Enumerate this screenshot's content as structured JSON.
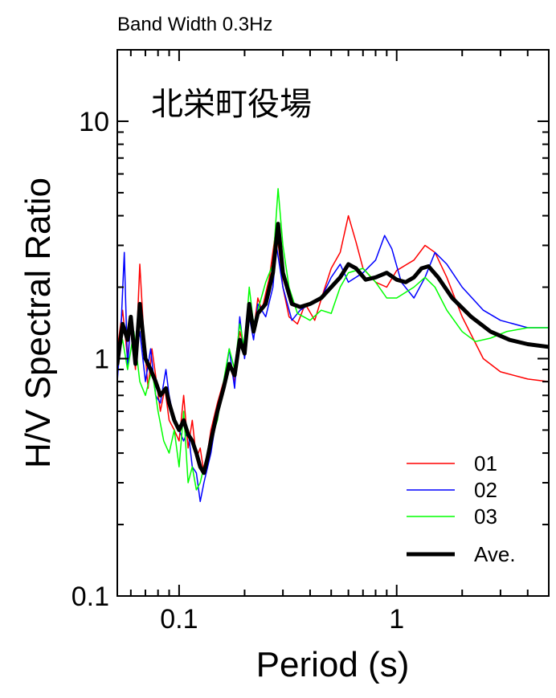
{
  "chart_data": {
    "type": "line",
    "subtitle": "Band Width 0.3Hz",
    "title": "北栄町役場",
    "xlabel": "Period (s)",
    "ylabel": "H/V Spectral Ratio",
    "x_scale": "log",
    "y_scale": "log",
    "xlim": [
      0.052,
      5
    ],
    "ylim": [
      0.1,
      20
    ],
    "x_ticks": [
      {
        "value": 0.1,
        "label": "0.1"
      },
      {
        "value": 1,
        "label": "1"
      }
    ],
    "y_ticks": [
      {
        "value": 0.1,
        "label": "0.1"
      },
      {
        "value": 1,
        "label": "1"
      },
      {
        "value": 10,
        "label": "10"
      }
    ],
    "grid": false,
    "legend_position": "bottom-right",
    "series": [
      {
        "name": "01",
        "color": "#ff0000",
        "width": 1.5,
        "points": [
          [
            0.052,
            1.1
          ],
          [
            0.055,
            1.6
          ],
          [
            0.058,
            1.0
          ],
          [
            0.06,
            1.4
          ],
          [
            0.063,
            0.9
          ],
          [
            0.066,
            2.5
          ],
          [
            0.069,
            1.2
          ],
          [
            0.072,
            0.75
          ],
          [
            0.075,
            1.1
          ],
          [
            0.078,
            0.85
          ],
          [
            0.082,
            0.6
          ],
          [
            0.086,
            0.75
          ],
          [
            0.09,
            0.55
          ],
          [
            0.095,
            0.5
          ],
          [
            0.1,
            0.45
          ],
          [
            0.105,
            0.7
          ],
          [
            0.11,
            0.42
          ],
          [
            0.115,
            0.55
          ],
          [
            0.12,
            0.38
          ],
          [
            0.125,
            0.42
          ],
          [
            0.13,
            0.33
          ],
          [
            0.135,
            0.4
          ],
          [
            0.14,
            0.5
          ],
          [
            0.15,
            0.65
          ],
          [
            0.16,
            0.8
          ],
          [
            0.17,
            0.95
          ],
          [
            0.18,
            0.8
          ],
          [
            0.19,
            1.3
          ],
          [
            0.2,
            1.1
          ],
          [
            0.21,
            1.6
          ],
          [
            0.22,
            1.3
          ],
          [
            0.23,
            1.8
          ],
          [
            0.24,
            1.6
          ],
          [
            0.26,
            2.2
          ],
          [
            0.28,
            3.6
          ],
          [
            0.3,
            2.0
          ],
          [
            0.32,
            1.5
          ],
          [
            0.35,
            1.4
          ],
          [
            0.38,
            1.7
          ],
          [
            0.42,
            1.45
          ],
          [
            0.46,
            1.9
          ],
          [
            0.5,
            2.4
          ],
          [
            0.55,
            2.8
          ],
          [
            0.6,
            4.0
          ],
          [
            0.65,
            3.1
          ],
          [
            0.7,
            2.4
          ],
          [
            0.8,
            2.1
          ],
          [
            0.9,
            2.0
          ],
          [
            1.0,
            2.35
          ],
          [
            1.2,
            2.6
          ],
          [
            1.35,
            3.0
          ],
          [
            1.5,
            2.8
          ],
          [
            1.7,
            2.2
          ],
          [
            2.0,
            1.5
          ],
          [
            2.5,
            1.0
          ],
          [
            3.0,
            0.88
          ],
          [
            4.0,
            0.82
          ],
          [
            5.0,
            0.8
          ]
        ]
      },
      {
        "name": "02",
        "color": "#0000ff",
        "width": 1.5,
        "points": [
          [
            0.052,
            0.8
          ],
          [
            0.054,
            1.3
          ],
          [
            0.056,
            2.8
          ],
          [
            0.058,
            0.9
          ],
          [
            0.06,
            1.5
          ],
          [
            0.063,
            1.0
          ],
          [
            0.066,
            1.3
          ],
          [
            0.07,
            0.8
          ],
          [
            0.074,
            1.1
          ],
          [
            0.078,
            0.7
          ],
          [
            0.082,
            0.65
          ],
          [
            0.087,
            0.9
          ],
          [
            0.09,
            0.7
          ],
          [
            0.095,
            0.55
          ],
          [
            0.1,
            0.5
          ],
          [
            0.105,
            0.45
          ],
          [
            0.11,
            0.5
          ],
          [
            0.115,
            0.35
          ],
          [
            0.12,
            0.33
          ],
          [
            0.125,
            0.25
          ],
          [
            0.13,
            0.3
          ],
          [
            0.14,
            0.4
          ],
          [
            0.15,
            0.6
          ],
          [
            0.16,
            0.75
          ],
          [
            0.17,
            1.1
          ],
          [
            0.18,
            0.75
          ],
          [
            0.19,
            1.5
          ],
          [
            0.2,
            1.0
          ],
          [
            0.21,
            1.5
          ],
          [
            0.22,
            1.2
          ],
          [
            0.23,
            1.7
          ],
          [
            0.25,
            1.5
          ],
          [
            0.27,
            2.0
          ],
          [
            0.28,
            3.0
          ],
          [
            0.3,
            2.0
          ],
          [
            0.33,
            1.45
          ],
          [
            0.36,
            1.6
          ],
          [
            0.4,
            1.7
          ],
          [
            0.45,
            1.8
          ],
          [
            0.5,
            2.2
          ],
          [
            0.55,
            2.5
          ],
          [
            0.6,
            2.1
          ],
          [
            0.7,
            2.3
          ],
          [
            0.8,
            2.6
          ],
          [
            0.88,
            3.3
          ],
          [
            0.95,
            2.9
          ],
          [
            1.05,
            2.1
          ],
          [
            1.2,
            1.8
          ],
          [
            1.35,
            2.2
          ],
          [
            1.5,
            2.8
          ],
          [
            1.7,
            2.5
          ],
          [
            2.0,
            2.0
          ],
          [
            2.5,
            1.6
          ],
          [
            3.0,
            1.45
          ],
          [
            4.0,
            1.35
          ],
          [
            5.0,
            1.35
          ]
        ]
      },
      {
        "name": "03",
        "color": "#00ff00",
        "width": 1.5,
        "points": [
          [
            0.052,
            1.0
          ],
          [
            0.055,
            1.2
          ],
          [
            0.058,
            0.9
          ],
          [
            0.062,
            1.3
          ],
          [
            0.066,
            0.8
          ],
          [
            0.07,
            0.7
          ],
          [
            0.075,
            0.9
          ],
          [
            0.08,
            0.6
          ],
          [
            0.085,
            0.45
          ],
          [
            0.09,
            0.4
          ],
          [
            0.095,
            0.5
          ],
          [
            0.1,
            0.35
          ],
          [
            0.105,
            0.6
          ],
          [
            0.11,
            0.3
          ],
          [
            0.115,
            0.35
          ],
          [
            0.12,
            0.28
          ],
          [
            0.125,
            0.3
          ],
          [
            0.13,
            0.35
          ],
          [
            0.14,
            0.45
          ],
          [
            0.15,
            0.55
          ],
          [
            0.16,
            0.8
          ],
          [
            0.17,
            1.1
          ],
          [
            0.18,
            0.9
          ],
          [
            0.19,
            1.4
          ],
          [
            0.2,
            1.1
          ],
          [
            0.21,
            2.0
          ],
          [
            0.22,
            1.4
          ],
          [
            0.23,
            1.6
          ],
          [
            0.25,
            2.1
          ],
          [
            0.27,
            2.5
          ],
          [
            0.285,
            5.2
          ],
          [
            0.3,
            3.0
          ],
          [
            0.32,
            2.0
          ],
          [
            0.35,
            1.55
          ],
          [
            0.4,
            1.45
          ],
          [
            0.45,
            1.6
          ],
          [
            0.5,
            1.55
          ],
          [
            0.55,
            2.0
          ],
          [
            0.6,
            2.3
          ],
          [
            0.7,
            2.4
          ],
          [
            0.8,
            2.1
          ],
          [
            0.9,
            1.8
          ],
          [
            1.0,
            1.8
          ],
          [
            1.2,
            2.0
          ],
          [
            1.35,
            2.2
          ],
          [
            1.5,
            2.0
          ],
          [
            1.7,
            1.6
          ],
          [
            2.0,
            1.3
          ],
          [
            2.3,
            1.18
          ],
          [
            2.7,
            1.22
          ],
          [
            3.2,
            1.3
          ],
          [
            4.0,
            1.35
          ],
          [
            5.0,
            1.35
          ]
        ]
      },
      {
        "name": "Ave.",
        "color": "#000000",
        "width": 5,
        "points": [
          [
            0.052,
            0.95
          ],
          [
            0.055,
            1.4
          ],
          [
            0.058,
            1.2
          ],
          [
            0.06,
            1.5
          ],
          [
            0.063,
            0.95
          ],
          [
            0.066,
            1.7
          ],
          [
            0.07,
            1.0
          ],
          [
            0.074,
            0.9
          ],
          [
            0.078,
            0.8
          ],
          [
            0.082,
            0.7
          ],
          [
            0.087,
            0.75
          ],
          [
            0.09,
            0.65
          ],
          [
            0.095,
            0.55
          ],
          [
            0.1,
            0.5
          ],
          [
            0.105,
            0.55
          ],
          [
            0.11,
            0.48
          ],
          [
            0.115,
            0.45
          ],
          [
            0.12,
            0.4
          ],
          [
            0.125,
            0.35
          ],
          [
            0.13,
            0.33
          ],
          [
            0.135,
            0.38
          ],
          [
            0.14,
            0.45
          ],
          [
            0.15,
            0.6
          ],
          [
            0.16,
            0.75
          ],
          [
            0.17,
            0.95
          ],
          [
            0.18,
            0.85
          ],
          [
            0.19,
            1.2
          ],
          [
            0.2,
            1.05
          ],
          [
            0.21,
            1.7
          ],
          [
            0.22,
            1.3
          ],
          [
            0.23,
            1.55
          ],
          [
            0.25,
            1.7
          ],
          [
            0.27,
            2.3
          ],
          [
            0.285,
            3.7
          ],
          [
            0.3,
            2.3
          ],
          [
            0.33,
            1.7
          ],
          [
            0.36,
            1.65
          ],
          [
            0.4,
            1.7
          ],
          [
            0.45,
            1.8
          ],
          [
            0.5,
            2.0
          ],
          [
            0.55,
            2.2
          ],
          [
            0.6,
            2.5
          ],
          [
            0.65,
            2.4
          ],
          [
            0.72,
            2.15
          ],
          [
            0.8,
            2.2
          ],
          [
            0.9,
            2.3
          ],
          [
            1.0,
            2.15
          ],
          [
            1.1,
            2.1
          ],
          [
            1.2,
            2.2
          ],
          [
            1.3,
            2.4
          ],
          [
            1.4,
            2.45
          ],
          [
            1.55,
            2.2
          ],
          [
            1.8,
            1.8
          ],
          [
            2.2,
            1.5
          ],
          [
            2.7,
            1.3
          ],
          [
            3.3,
            1.2
          ],
          [
            4.0,
            1.15
          ],
          [
            5.0,
            1.12
          ]
        ]
      }
    ]
  }
}
